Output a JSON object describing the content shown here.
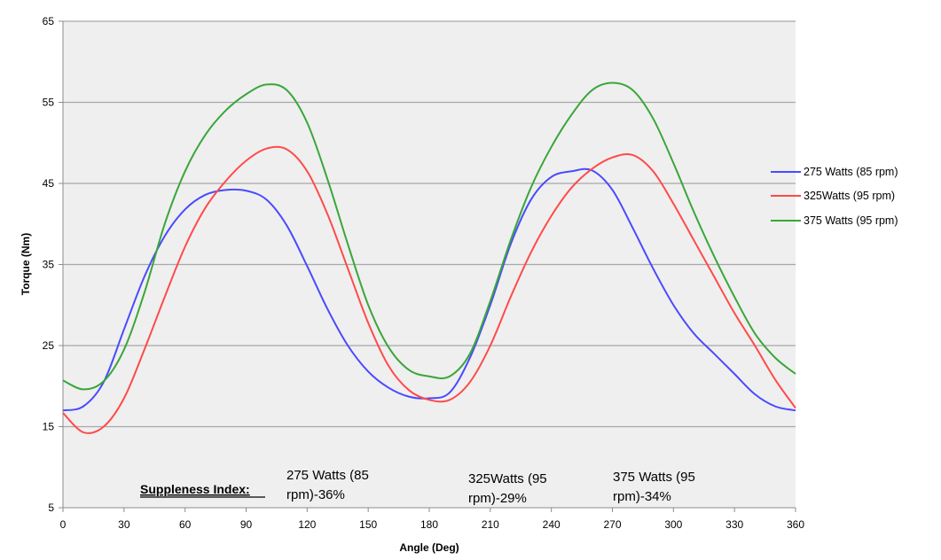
{
  "chart_data": {
    "type": "line",
    "xlabel": "Angle (Deg)",
    "ylabel": "Torque (Nm)",
    "xlim": [
      0,
      360
    ],
    "ylim": [
      5,
      65
    ],
    "xticks": [
      0,
      30,
      60,
      90,
      120,
      150,
      180,
      210,
      240,
      270,
      300,
      330,
      360
    ],
    "yticks": [
      5,
      15,
      25,
      35,
      45,
      55,
      65
    ],
    "grid": "horizontal",
    "legend_position": "right",
    "series": [
      {
        "name": "275 Watts (85 rpm)",
        "color": "#4a4aff",
        "x": [
          0,
          10,
          20,
          30,
          40,
          50,
          60,
          70,
          80,
          90,
          100,
          110,
          120,
          130,
          140,
          150,
          160,
          170,
          180,
          190,
          200,
          210,
          220,
          230,
          240,
          250,
          260,
          270,
          280,
          290,
          300,
          310,
          320,
          330,
          340,
          350,
          360
        ],
        "values": [
          17,
          17.5,
          20.5,
          27,
          33.5,
          38.5,
          41.8,
          43.6,
          44.2,
          44.1,
          43,
          39.8,
          34.8,
          29.5,
          25,
          21.8,
          19.8,
          18.7,
          18.5,
          19.2,
          23.5,
          30,
          37.5,
          43,
          45.8,
          46.5,
          46.6,
          44.2,
          39.5,
          34.5,
          30,
          26.5,
          24,
          21.5,
          19,
          17.5,
          17
        ]
      },
      {
        "name": "325Watts (95 rpm)",
        "color": "#ff4a4a",
        "x": [
          0,
          10,
          20,
          30,
          40,
          50,
          60,
          70,
          80,
          90,
          100,
          110,
          120,
          130,
          140,
          150,
          160,
          170,
          180,
          190,
          200,
          210,
          220,
          230,
          240,
          250,
          260,
          270,
          280,
          290,
          300,
          310,
          320,
          330,
          340,
          350,
          360
        ],
        "values": [
          16.7,
          14.3,
          15,
          18.5,
          24.5,
          31,
          37.2,
          42,
          45.3,
          47.8,
          49.3,
          49.2,
          46.5,
          41.2,
          34.5,
          27.8,
          22.5,
          19.5,
          18.3,
          18.3,
          20.5,
          25,
          31,
          36.5,
          41,
          44.5,
          46.8,
          48.2,
          48.5,
          46.5,
          42.5,
          38,
          33.5,
          29,
          25,
          20.8,
          17.3
        ]
      },
      {
        "name": "375 Watts (95 rpm)",
        "color": "#3aa63a",
        "x": [
          0,
          10,
          20,
          30,
          40,
          50,
          60,
          70,
          80,
          90,
          100,
          110,
          120,
          130,
          140,
          150,
          160,
          170,
          180,
          190,
          200,
          210,
          220,
          230,
          240,
          250,
          260,
          270,
          280,
          290,
          300,
          310,
          320,
          330,
          340,
          350,
          360
        ],
        "values": [
          20.7,
          19.6,
          20.6,
          24.5,
          31.5,
          40,
          46.5,
          51,
          54,
          56,
          57.2,
          56.5,
          52.5,
          45.5,
          37.5,
          30,
          24.8,
          22,
          21.2,
          21.2,
          24,
          30.5,
          38,
          44.5,
          49.5,
          53.5,
          56.5,
          57.4,
          56.5,
          53,
          47.5,
          41.5,
          36,
          31,
          26.5,
          23.5,
          21.5
        ]
      }
    ],
    "annotation": {
      "heading": "Suppleness Index:",
      "items": [
        {
          "line1": "275 Watts (85",
          "line2": "rpm)-36%"
        },
        {
          "line1": "325Watts (95",
          "line2": "rpm)-29%"
        },
        {
          "line1": "375 Watts (95",
          "line2": "rpm)-34%"
        }
      ]
    }
  }
}
